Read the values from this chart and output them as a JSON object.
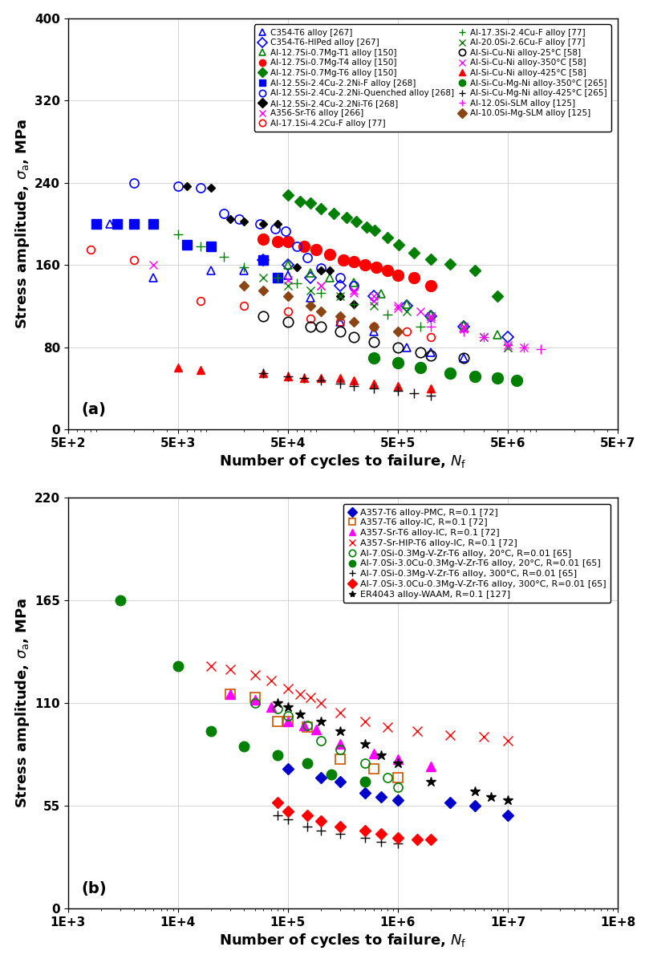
{
  "panel_a": {
    "xlabel": "Number of cycles to failure, $N_\\mathrm{f}$",
    "ylabel": "Stress amplitude, $\\sigma_\\mathrm{a}$, MPa",
    "xlim": [
      500,
      50000000
    ],
    "ylim": [
      0,
      400
    ],
    "yticks": [
      0,
      80,
      160,
      240,
      320,
      400
    ],
    "xtick_labels": [
      "5E+2",
      "5E+3",
      "5E+4",
      "5E+5",
      "5E+6",
      "5E+7"
    ],
    "xtick_vals": [
      500,
      5000,
      50000,
      500000,
      5000000,
      50000000
    ]
  },
  "panel_b": {
    "xlabel": "Number of cycles to failure, $N_\\mathrm{f}$",
    "ylabel": "Stress amplitude, $\\sigma_\\mathrm{a}$, MPa",
    "xlim": [
      1000,
      100000000
    ],
    "ylim": [
      0,
      220
    ],
    "yticks": [
      0,
      55,
      110,
      165,
      220
    ],
    "xtick_labels": [
      "1E+3",
      "1E+4",
      "1E+5",
      "1E+6",
      "1E+7",
      "1E+8"
    ],
    "xtick_vals": [
      1000,
      10000,
      100000,
      1000000,
      10000000,
      100000000
    ]
  }
}
